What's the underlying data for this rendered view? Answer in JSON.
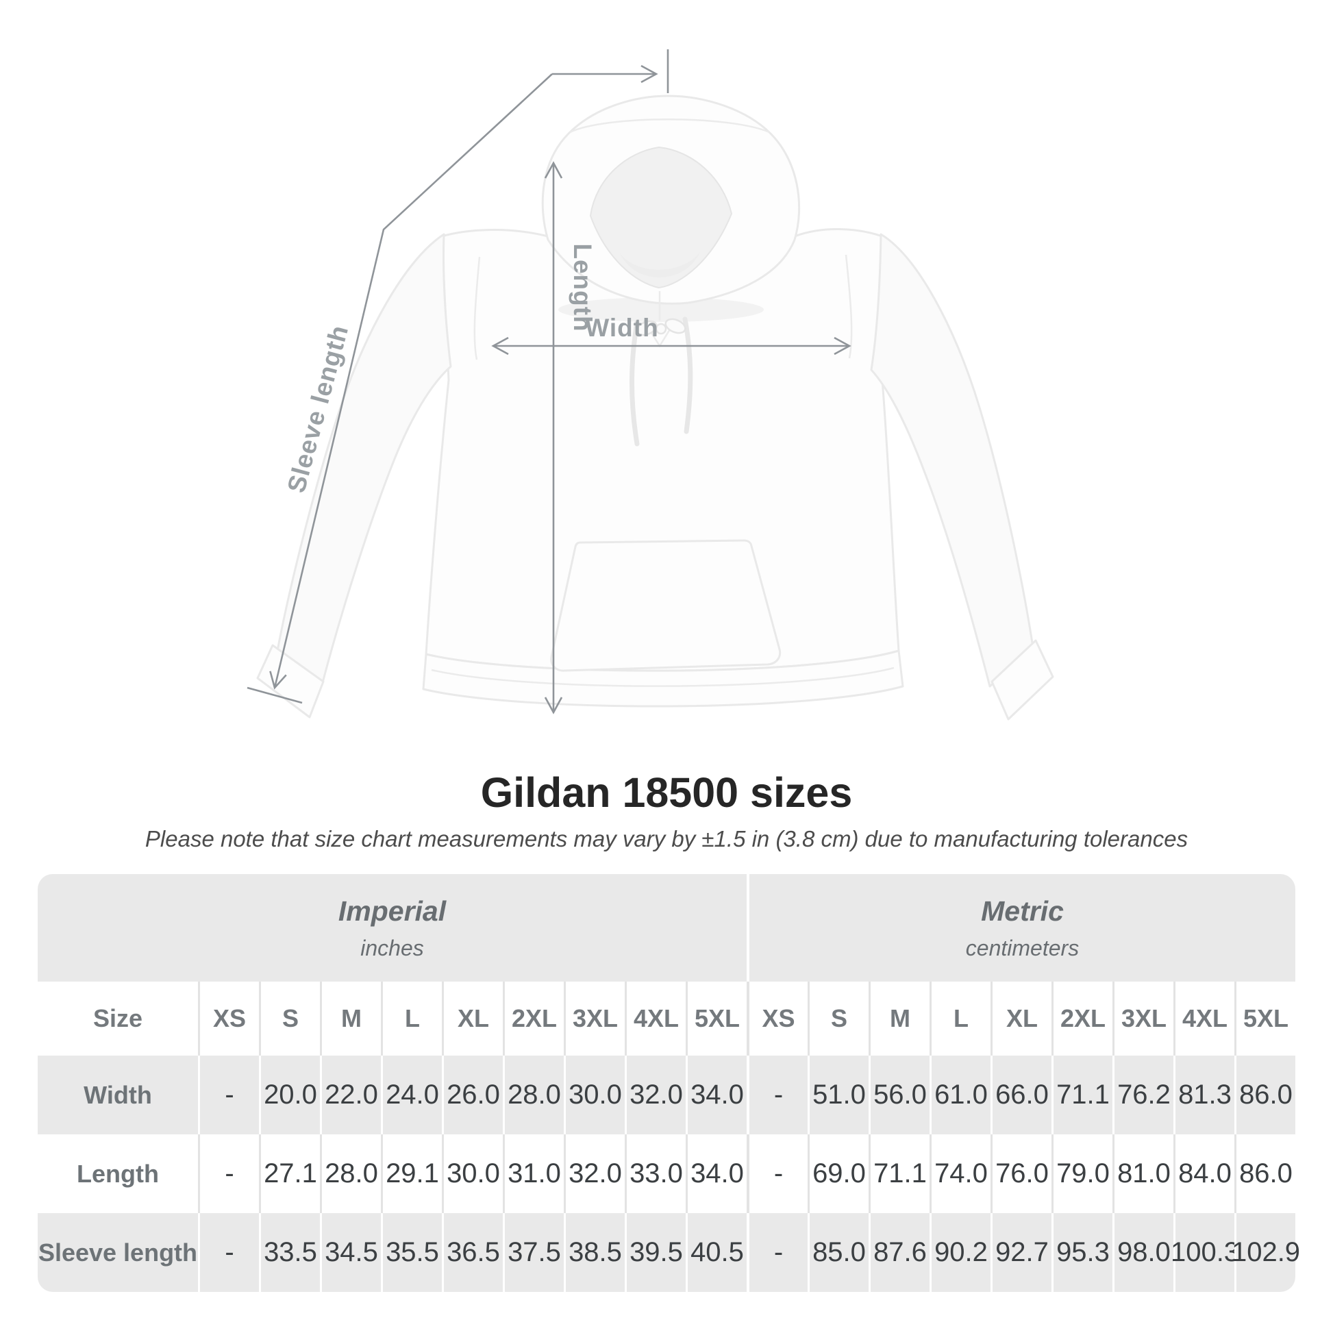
{
  "diagram": {
    "sleeve_label": "Sleeve length",
    "length_label": "Length",
    "width_label": "Width"
  },
  "heading": {
    "title": "Gildan 18500 sizes",
    "note": "Please note that size chart measurements may vary by ±1.5 in (3.8 cm) due to manufacturing tolerances"
  },
  "size_chart": {
    "corner_header": "Size",
    "unit_groups": [
      {
        "name": "Imperial",
        "unit": "inches"
      },
      {
        "name": "Metric",
        "unit": "centimeters"
      }
    ],
    "sizes": [
      "XS",
      "S",
      "M",
      "L",
      "XL",
      "2XL",
      "3XL",
      "4XL",
      "5XL"
    ],
    "rows": [
      {
        "label": "Width",
        "imperial": [
          "-",
          "20.0",
          "22.0",
          "24.0",
          "26.0",
          "28.0",
          "30.0",
          "32.0",
          "34.0"
        ],
        "metric": [
          "-",
          "51.0",
          "56.0",
          "61.0",
          "66.0",
          "71.1",
          "76.2",
          "81.3",
          "86.0"
        ]
      },
      {
        "label": "Length",
        "imperial": [
          "-",
          "27.1",
          "28.0",
          "29.1",
          "30.0",
          "31.0",
          "32.0",
          "33.0",
          "34.0"
        ],
        "metric": [
          "-",
          "69.0",
          "71.1",
          "74.0",
          "76.0",
          "79.0",
          "81.0",
          "84.0",
          "86.0"
        ]
      },
      {
        "label": "Sleeve length",
        "imperial": [
          "-",
          "33.5",
          "34.5",
          "35.5",
          "36.5",
          "37.5",
          "38.5",
          "39.5",
          "40.5"
        ],
        "metric": [
          "-",
          "85.0",
          "87.6",
          "90.2",
          "92.7",
          "95.3",
          "98.0",
          "100.3",
          "102.9"
        ]
      }
    ]
  },
  "colors": {
    "table_gray": "#e9e9e9",
    "separator_light": "#e3e3e3",
    "header_text": "#74797d",
    "value_text": "#3b3f42",
    "row_label_text": "#6d7377",
    "unit_text": "#686d71",
    "note_text": "#4c4c4c",
    "title_text": "#262626",
    "annotation_line": "#8f9499",
    "annotation_label": "#9aa0a4"
  }
}
